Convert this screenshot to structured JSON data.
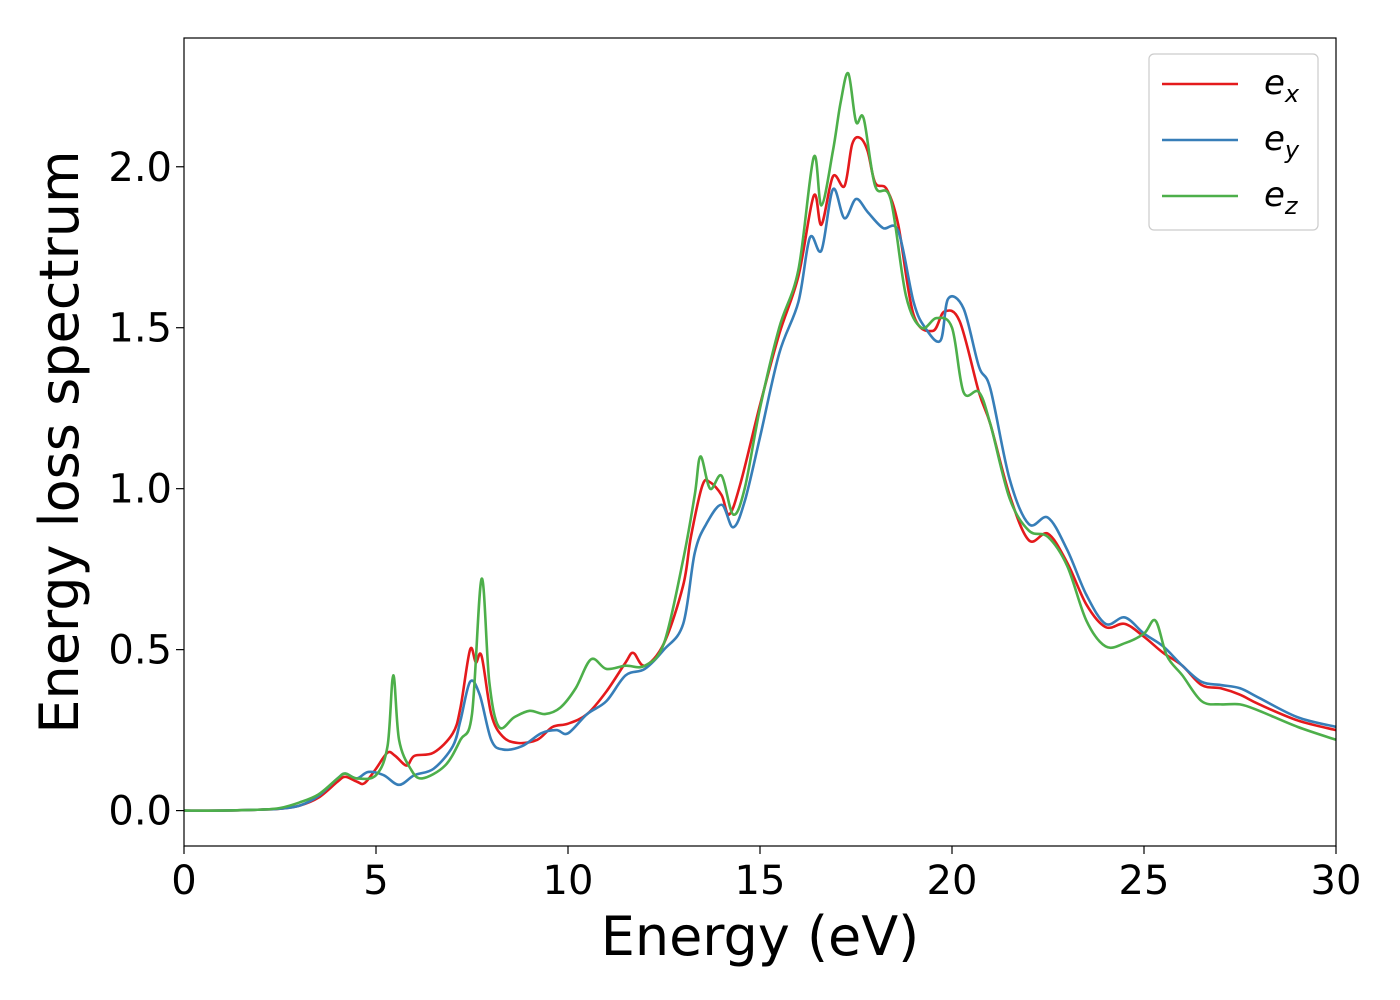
{
  "chart_data": {
    "type": "line",
    "title": "",
    "xlabel": "Energy (eV)",
    "ylabel": "Energy loss spectrum",
    "xlim": [
      0,
      30
    ],
    "ylim": [
      -0.11,
      2.4
    ],
    "xticks": [
      0,
      5,
      10,
      15,
      20,
      25,
      30
    ],
    "xtick_labels": [
      "0",
      "5",
      "10",
      "15",
      "20",
      "25",
      "30"
    ],
    "yticks": [
      0.0,
      0.5,
      1.0,
      1.5,
      2.0
    ],
    "ytick_labels": [
      "0.0",
      "0.5",
      "1.0",
      "1.5",
      "2.0"
    ],
    "grid": false,
    "legend_position": "top-right",
    "series": [
      {
        "name": "e_x",
        "legend_main": "e",
        "legend_sub": "x",
        "color": "#e41a1c",
        "points": [
          [
            0,
            0
          ],
          [
            1,
            0
          ],
          [
            2,
            0.003
          ],
          [
            2.5,
            0.006
          ],
          [
            3,
            0.015
          ],
          [
            3.5,
            0.04
          ],
          [
            4,
            0.09
          ],
          [
            4.2,
            0.105
          ],
          [
            4.5,
            0.09
          ],
          [
            4.7,
            0.085
          ],
          [
            5,
            0.13
          ],
          [
            5.3,
            0.18
          ],
          [
            5.5,
            0.17
          ],
          [
            5.8,
            0.14
          ],
          [
            6,
            0.17
          ],
          [
            6.5,
            0.18
          ],
          [
            7,
            0.24
          ],
          [
            7.2,
            0.32
          ],
          [
            7.45,
            0.5
          ],
          [
            7.6,
            0.46
          ],
          [
            7.75,
            0.48
          ],
          [
            8,
            0.3
          ],
          [
            8.3,
            0.23
          ],
          [
            8.7,
            0.21
          ],
          [
            9.2,
            0.22
          ],
          [
            9.6,
            0.26
          ],
          [
            10,
            0.27
          ],
          [
            10.5,
            0.3
          ],
          [
            11,
            0.37
          ],
          [
            11.5,
            0.46
          ],
          [
            11.7,
            0.49
          ],
          [
            12,
            0.45
          ],
          [
            12.5,
            0.52
          ],
          [
            13,
            0.7
          ],
          [
            13.2,
            0.85
          ],
          [
            13.5,
            1.01
          ],
          [
            13.7,
            1.02
          ],
          [
            14,
            0.98
          ],
          [
            14.2,
            0.92
          ],
          [
            14.5,
            1.02
          ],
          [
            15,
            1.26
          ],
          [
            15.5,
            1.48
          ],
          [
            16,
            1.66
          ],
          [
            16.4,
            1.91
          ],
          [
            16.6,
            1.82
          ],
          [
            16.9,
            1.97
          ],
          [
            17.2,
            1.94
          ],
          [
            17.4,
            2.07
          ],
          [
            17.6,
            2.09
          ],
          [
            17.8,
            2.05
          ],
          [
            18,
            1.95
          ],
          [
            18.3,
            1.93
          ],
          [
            18.6,
            1.82
          ],
          [
            19,
            1.54
          ],
          [
            19.5,
            1.49
          ],
          [
            19.8,
            1.55
          ],
          [
            20.2,
            1.52
          ],
          [
            20.7,
            1.3
          ],
          [
            21,
            1.2
          ],
          [
            21.5,
            0.98
          ],
          [
            22,
            0.84
          ],
          [
            22.5,
            0.86
          ],
          [
            23,
            0.77
          ],
          [
            23.5,
            0.64
          ],
          [
            24,
            0.57
          ],
          [
            24.5,
            0.58
          ],
          [
            25,
            0.54
          ],
          [
            25.5,
            0.49
          ],
          [
            26,
            0.45
          ],
          [
            26.5,
            0.39
          ],
          [
            27,
            0.38
          ],
          [
            27.5,
            0.36
          ],
          [
            28,
            0.33
          ],
          [
            29,
            0.28
          ],
          [
            30,
            0.25
          ]
        ]
      },
      {
        "name": "e_y",
        "legend_main": "e",
        "legend_sub": "y",
        "color": "#377eb8",
        "points": [
          [
            0,
            0
          ],
          [
            1,
            0
          ],
          [
            2,
            0.003
          ],
          [
            2.5,
            0.006
          ],
          [
            3,
            0.015
          ],
          [
            3.5,
            0.045
          ],
          [
            4,
            0.1
          ],
          [
            4.2,
            0.115
          ],
          [
            4.5,
            0.1
          ],
          [
            4.8,
            0.12
          ],
          [
            5.2,
            0.11
          ],
          [
            5.6,
            0.08
          ],
          [
            6,
            0.11
          ],
          [
            6.5,
            0.13
          ],
          [
            7,
            0.2
          ],
          [
            7.2,
            0.28
          ],
          [
            7.45,
            0.4
          ],
          [
            7.7,
            0.36
          ],
          [
            8,
            0.22
          ],
          [
            8.3,
            0.19
          ],
          [
            8.8,
            0.2
          ],
          [
            9.3,
            0.24
          ],
          [
            9.7,
            0.25
          ],
          [
            10,
            0.24
          ],
          [
            10.5,
            0.3
          ],
          [
            11,
            0.34
          ],
          [
            11.5,
            0.42
          ],
          [
            12,
            0.44
          ],
          [
            12.5,
            0.5
          ],
          [
            13,
            0.58
          ],
          [
            13.3,
            0.8
          ],
          [
            13.6,
            0.89
          ],
          [
            14,
            0.95
          ],
          [
            14.3,
            0.88
          ],
          [
            14.6,
            0.96
          ],
          [
            15,
            1.16
          ],
          [
            15.5,
            1.42
          ],
          [
            16,
            1.58
          ],
          [
            16.3,
            1.78
          ],
          [
            16.6,
            1.74
          ],
          [
            16.9,
            1.93
          ],
          [
            17.2,
            1.84
          ],
          [
            17.5,
            1.9
          ],
          [
            17.8,
            1.86
          ],
          [
            18.2,
            1.81
          ],
          [
            18.6,
            1.8
          ],
          [
            19,
            1.58
          ],
          [
            19.3,
            1.5
          ],
          [
            19.7,
            1.46
          ],
          [
            19.9,
            1.59
          ],
          [
            20.3,
            1.56
          ],
          [
            20.7,
            1.38
          ],
          [
            21,
            1.31
          ],
          [
            21.5,
            1.03
          ],
          [
            22,
            0.89
          ],
          [
            22.5,
            0.91
          ],
          [
            23,
            0.81
          ],
          [
            23.5,
            0.67
          ],
          [
            24,
            0.58
          ],
          [
            24.5,
            0.6
          ],
          [
            25,
            0.55
          ],
          [
            25.5,
            0.51
          ],
          [
            26,
            0.45
          ],
          [
            26.5,
            0.4
          ],
          [
            27,
            0.39
          ],
          [
            27.5,
            0.38
          ],
          [
            28,
            0.35
          ],
          [
            29,
            0.29
          ],
          [
            30,
            0.26
          ]
        ]
      },
      {
        "name": "e_z",
        "legend_main": "e",
        "legend_sub": "z",
        "color": "#4daf4a",
        "points": [
          [
            0,
            0
          ],
          [
            1,
            0
          ],
          [
            2,
            0.003
          ],
          [
            2.5,
            0.008
          ],
          [
            3,
            0.025
          ],
          [
            3.5,
            0.05
          ],
          [
            4,
            0.1
          ],
          [
            4.2,
            0.115
          ],
          [
            4.5,
            0.1
          ],
          [
            5,
            0.11
          ],
          [
            5.3,
            0.2
          ],
          [
            5.45,
            0.42
          ],
          [
            5.6,
            0.22
          ],
          [
            5.9,
            0.13
          ],
          [
            6.2,
            0.1
          ],
          [
            6.8,
            0.14
          ],
          [
            7.2,
            0.22
          ],
          [
            7.5,
            0.3
          ],
          [
            7.75,
            0.72
          ],
          [
            7.95,
            0.4
          ],
          [
            8.2,
            0.26
          ],
          [
            8.6,
            0.29
          ],
          [
            9,
            0.31
          ],
          [
            9.4,
            0.3
          ],
          [
            9.8,
            0.32
          ],
          [
            10.2,
            0.38
          ],
          [
            10.6,
            0.47
          ],
          [
            11,
            0.44
          ],
          [
            11.5,
            0.45
          ],
          [
            12,
            0.45
          ],
          [
            12.5,
            0.52
          ],
          [
            13,
            0.78
          ],
          [
            13.3,
            0.98
          ],
          [
            13.45,
            1.1
          ],
          [
            13.7,
            1.0
          ],
          [
            14,
            1.04
          ],
          [
            14.3,
            0.92
          ],
          [
            14.6,
            1.0
          ],
          [
            15,
            1.25
          ],
          [
            15.5,
            1.5
          ],
          [
            16,
            1.68
          ],
          [
            16.4,
            2.03
          ],
          [
            16.6,
            1.88
          ],
          [
            16.9,
            2.05
          ],
          [
            17.1,
            2.2
          ],
          [
            17.3,
            2.29
          ],
          [
            17.5,
            2.14
          ],
          [
            17.7,
            2.15
          ],
          [
            18,
            1.94
          ],
          [
            18.4,
            1.9
          ],
          [
            18.8,
            1.6
          ],
          [
            19.2,
            1.5
          ],
          [
            19.6,
            1.53
          ],
          [
            20,
            1.5
          ],
          [
            20.3,
            1.3
          ],
          [
            20.7,
            1.3
          ],
          [
            21,
            1.2
          ],
          [
            21.5,
            0.97
          ],
          [
            22,
            0.87
          ],
          [
            22.5,
            0.85
          ],
          [
            23,
            0.76
          ],
          [
            23.5,
            0.59
          ],
          [
            24,
            0.51
          ],
          [
            24.5,
            0.52
          ],
          [
            25,
            0.55
          ],
          [
            25.3,
            0.59
          ],
          [
            25.6,
            0.48
          ],
          [
            26,
            0.42
          ],
          [
            26.5,
            0.34
          ],
          [
            27,
            0.33
          ],
          [
            27.5,
            0.33
          ],
          [
            28,
            0.31
          ],
          [
            29,
            0.26
          ],
          [
            30,
            0.22
          ]
        ]
      }
    ]
  }
}
